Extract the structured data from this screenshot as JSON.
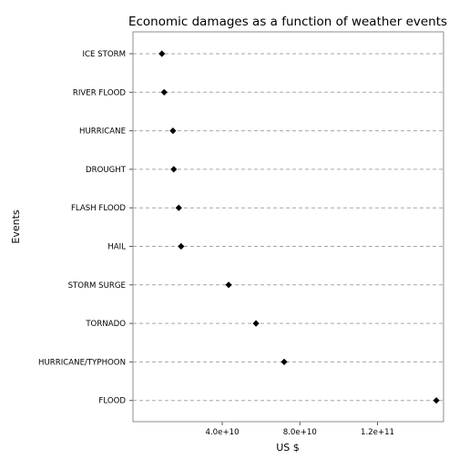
{
  "chart_data": {
    "type": "scatter",
    "title": "Economic damages as a function of weather events",
    "xlabel": "US $",
    "ylabel": "Events",
    "xlim": [
      -6000000000,
      154000000000
    ],
    "x_ticks": [
      {
        "value": 40000000000,
        "label": "4.0e+10"
      },
      {
        "value": 80000000000,
        "label": "8.0e+10"
      },
      {
        "value": 120000000000,
        "label": "1.2e+11"
      }
    ],
    "categories": [
      "ICE STORM",
      "RIVER FLOOD",
      "HURRICANE",
      "DROUGHT",
      "FLASH FLOOD",
      "HAIL",
      "STORM SURGE",
      "TORNADO",
      "HURRICANE/TYPHOON",
      "FLOOD"
    ],
    "values": [
      8900000000,
      10100000000,
      14600000000,
      15000000000,
      17600000000,
      18800000000,
      43300000000,
      57400000000,
      71900000000,
      150300000000
    ],
    "grid": "dashed horizontal lines",
    "legend": "none",
    "colors": {
      "point": "#000000",
      "grid": "#a6a6a6",
      "panel_border": "#8c8c8c",
      "background": "#ffffff"
    }
  }
}
